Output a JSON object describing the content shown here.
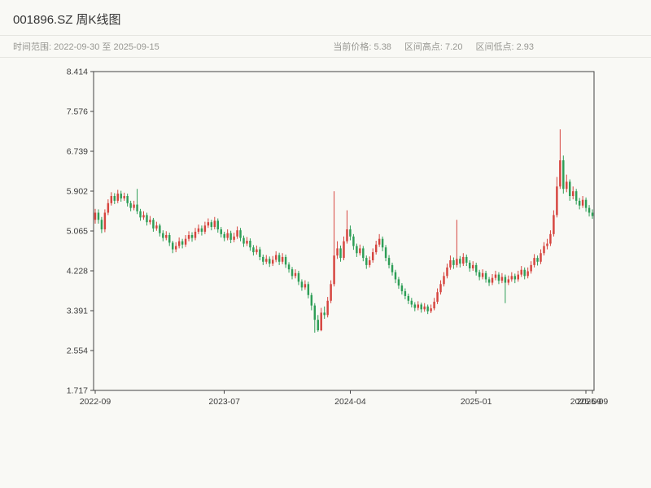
{
  "header": {
    "title": "001896.SZ 周K线图",
    "time_range": "时间范围: 2022-09-30 至 2025-09-15",
    "stats": {
      "current_price": "当前价格: 5.38",
      "range_high": "区间高点: 7.20",
      "range_low": "区间低点: 2.93"
    }
  },
  "chart_data": {
    "type": "candlestick",
    "symbol": "001896.SZ",
    "interval": "weekly",
    "start_date": "2022-09-30",
    "end_date": "2025-09-15",
    "current_price": 5.38,
    "range_high": 7.2,
    "range_low": 2.93,
    "y_min": 1.717,
    "y_max": 8.414,
    "y_tick_labels": [
      "8.414",
      "7.576",
      "6.739",
      "5.902",
      "5.065",
      "4.228",
      "3.391",
      "2.554",
      "1.717"
    ],
    "x_ticks": [
      {
        "i": 0,
        "label": "2022-09"
      },
      {
        "i": 40,
        "label": "2023-07"
      },
      {
        "i": 79,
        "label": "2024-04"
      },
      {
        "i": 118,
        "label": "2025-01"
      },
      {
        "i": 152,
        "label": "2025-09"
      },
      {
        "i": 154,
        "label": "2025-09"
      }
    ],
    "up_color": "#d6453f",
    "down_color": "#2e9e57",
    "axis_color": "#444444",
    "label_color": "#3c3c3c",
    "grid": false,
    "legend": false,
    "ohlc_columns": [
      "open",
      "high",
      "low",
      "close"
    ],
    "ohlc": [
      [
        5.3,
        5.53,
        5.22,
        5.45
      ],
      [
        5.45,
        5.52,
        5.22,
        5.3
      ],
      [
        5.3,
        5.36,
        5.02,
        5.1
      ],
      [
        5.1,
        5.52,
        5.04,
        5.45
      ],
      [
        5.45,
        5.73,
        5.4,
        5.65
      ],
      [
        5.65,
        5.88,
        5.6,
        5.8
      ],
      [
        5.8,
        5.86,
        5.63,
        5.7
      ],
      [
        5.7,
        5.93,
        5.65,
        5.85
      ],
      [
        5.85,
        5.91,
        5.68,
        5.75
      ],
      [
        5.75,
        5.87,
        5.7,
        5.8
      ],
      [
        5.8,
        5.85,
        5.58,
        5.65
      ],
      [
        5.65,
        5.7,
        5.48,
        5.55
      ],
      [
        5.55,
        5.7,
        5.5,
        5.62
      ],
      [
        5.62,
        5.95,
        5.42,
        5.48
      ],
      [
        5.48,
        5.53,
        5.28,
        5.35
      ],
      [
        5.35,
        5.48,
        5.3,
        5.4
      ],
      [
        5.4,
        5.45,
        5.18,
        5.25
      ],
      [
        5.25,
        5.38,
        5.2,
        5.3
      ],
      [
        5.3,
        5.34,
        5.05,
        5.12
      ],
      [
        5.12,
        5.26,
        5.07,
        5.18
      ],
      [
        5.18,
        5.22,
        4.95,
        5.02
      ],
      [
        5.02,
        5.08,
        4.85,
        4.92
      ],
      [
        4.92,
        5.06,
        4.87,
        4.98
      ],
      [
        4.98,
        5.03,
        4.75,
        4.82
      ],
      [
        4.82,
        4.86,
        4.6,
        4.68
      ],
      [
        4.68,
        4.83,
        4.62,
        4.75
      ],
      [
        4.75,
        4.93,
        4.7,
        4.85
      ],
      [
        4.85,
        4.9,
        4.7,
        4.78
      ],
      [
        4.78,
        4.98,
        4.73,
        4.9
      ],
      [
        4.9,
        5.06,
        4.85,
        4.98
      ],
      [
        4.98,
        5.04,
        4.84,
        4.92
      ],
      [
        4.92,
        5.13,
        4.87,
        5.05
      ],
      [
        5.05,
        5.2,
        5.0,
        5.12
      ],
      [
        5.12,
        5.18,
        4.97,
        5.05
      ],
      [
        5.05,
        5.26,
        5.0,
        5.18
      ],
      [
        5.18,
        5.33,
        5.13,
        5.25
      ],
      [
        5.25,
        5.3,
        5.08,
        5.15
      ],
      [
        5.15,
        5.36,
        5.1,
        5.28
      ],
      [
        5.28,
        5.33,
        5.03,
        5.1
      ],
      [
        5.1,
        5.15,
        4.93,
        5.0
      ],
      [
        5.0,
        5.05,
        4.85,
        4.92
      ],
      [
        4.92,
        5.1,
        4.87,
        5.02
      ],
      [
        5.02,
        5.07,
        4.81,
        4.88
      ],
      [
        4.88,
        5.03,
        4.83,
        4.95
      ],
      [
        4.95,
        5.16,
        4.9,
        5.08
      ],
      [
        5.08,
        5.13,
        4.85,
        4.92
      ],
      [
        4.92,
        4.97,
        4.73,
        4.8
      ],
      [
        4.8,
        4.94,
        4.75,
        4.86
      ],
      [
        4.86,
        4.91,
        4.65,
        4.72
      ],
      [
        4.72,
        4.77,
        4.55,
        4.62
      ],
      [
        4.62,
        4.76,
        4.57,
        4.68
      ],
      [
        4.68,
        4.73,
        4.45,
        4.52
      ],
      [
        4.52,
        4.57,
        4.35,
        4.42
      ],
      [
        4.42,
        4.56,
        4.37,
        4.48
      ],
      [
        4.48,
        4.53,
        4.31,
        4.38
      ],
      [
        4.38,
        4.54,
        4.33,
        4.46
      ],
      [
        4.46,
        4.64,
        4.41,
        4.56
      ],
      [
        4.56,
        4.61,
        4.35,
        4.42
      ],
      [
        4.42,
        4.6,
        4.37,
        4.52
      ],
      [
        4.52,
        4.57,
        4.29,
        4.36
      ],
      [
        4.36,
        4.41,
        4.19,
        4.26
      ],
      [
        4.26,
        4.31,
        4.05,
        4.12
      ],
      [
        4.12,
        4.26,
        4.07,
        4.18
      ],
      [
        4.18,
        4.23,
        3.93,
        4.0
      ],
      [
        4.0,
        4.05,
        3.81,
        3.88
      ],
      [
        3.88,
        4.03,
        3.83,
        3.95
      ],
      [
        3.95,
        4.0,
        3.65,
        3.72
      ],
      [
        3.72,
        3.77,
        3.4,
        3.5
      ],
      [
        3.5,
        3.55,
        2.93,
        3.2
      ],
      [
        3.2,
        3.3,
        2.95,
        2.98
      ],
      [
        2.98,
        3.45,
        2.96,
        3.35
      ],
      [
        3.35,
        3.48,
        3.22,
        3.3
      ],
      [
        3.3,
        3.68,
        3.25,
        3.6
      ],
      [
        3.6,
        4.03,
        3.55,
        3.95
      ],
      [
        3.95,
        5.9,
        3.9,
        4.55
      ],
      [
        4.55,
        4.85,
        4.48,
        4.7
      ],
      [
        4.7,
        4.76,
        4.42,
        4.5
      ],
      [
        4.5,
        4.95,
        4.45,
        4.85
      ],
      [
        4.85,
        5.5,
        4.8,
        5.1
      ],
      [
        5.1,
        5.18,
        4.87,
        4.95
      ],
      [
        4.95,
        5.0,
        4.67,
        4.75
      ],
      [
        4.75,
        4.8,
        4.52,
        4.6
      ],
      [
        4.6,
        4.78,
        4.55,
        4.7
      ],
      [
        4.7,
        4.75,
        4.43,
        4.5
      ],
      [
        4.5,
        4.55,
        4.27,
        4.35
      ],
      [
        4.35,
        4.53,
        4.3,
        4.45
      ],
      [
        4.45,
        4.7,
        4.4,
        4.62
      ],
      [
        4.62,
        4.86,
        4.57,
        4.78
      ],
      [
        4.78,
        5.0,
        4.73,
        4.9
      ],
      [
        4.9,
        4.95,
        4.64,
        4.72
      ],
      [
        4.72,
        4.77,
        4.43,
        4.5
      ],
      [
        4.5,
        4.56,
        4.28,
        4.35
      ],
      [
        4.35,
        4.4,
        4.13,
        4.2
      ],
      [
        4.2,
        4.25,
        3.97,
        4.05
      ],
      [
        4.05,
        4.1,
        3.85,
        3.92
      ],
      [
        3.92,
        3.97,
        3.73,
        3.8
      ],
      [
        3.8,
        3.86,
        3.63,
        3.7
      ],
      [
        3.7,
        3.75,
        3.53,
        3.6
      ],
      [
        3.6,
        3.66,
        3.46,
        3.52
      ],
      [
        3.52,
        3.57,
        3.38,
        3.45
      ],
      [
        3.45,
        3.59,
        3.4,
        3.52
      ],
      [
        3.52,
        3.56,
        3.35,
        3.42
      ],
      [
        3.42,
        3.55,
        3.37,
        3.48
      ],
      [
        3.48,
        3.52,
        3.32,
        3.38
      ],
      [
        3.38,
        3.52,
        3.34,
        3.44
      ],
      [
        3.44,
        3.66,
        3.4,
        3.58
      ],
      [
        3.58,
        3.86,
        3.53,
        3.78
      ],
      [
        3.78,
        4.03,
        3.73,
        3.95
      ],
      [
        3.95,
        4.2,
        3.9,
        4.12
      ],
      [
        4.12,
        4.38,
        4.07,
        4.3
      ],
      [
        4.3,
        4.55,
        4.25,
        4.45
      ],
      [
        4.45,
        4.51,
        4.27,
        4.35
      ],
      [
        4.35,
        5.3,
        4.3,
        4.48
      ],
      [
        4.48,
        4.54,
        4.3,
        4.38
      ],
      [
        4.38,
        4.6,
        4.33,
        4.52
      ],
      [
        4.52,
        4.57,
        4.33,
        4.4
      ],
      [
        4.4,
        4.45,
        4.21,
        4.28
      ],
      [
        4.28,
        4.43,
        4.23,
        4.35
      ],
      [
        4.35,
        4.4,
        4.13,
        4.2
      ],
      [
        4.2,
        4.25,
        4.03,
        4.1
      ],
      [
        4.1,
        4.26,
        4.05,
        4.18
      ],
      [
        4.18,
        4.23,
        3.98,
        4.05
      ],
      [
        4.05,
        4.1,
        3.91,
        3.98
      ],
      [
        3.98,
        4.16,
        3.93,
        4.08
      ],
      [
        4.08,
        4.23,
        4.03,
        4.15
      ],
      [
        4.15,
        4.2,
        3.95,
        4.02
      ],
      [
        4.02,
        4.18,
        3.97,
        4.1
      ],
      [
        4.1,
        4.15,
        3.55,
        3.98
      ],
      [
        3.98,
        4.13,
        3.93,
        4.05
      ],
      [
        4.05,
        4.2,
        4.0,
        4.12
      ],
      [
        4.12,
        4.17,
        3.97,
        4.05
      ],
      [
        4.05,
        4.23,
        4.0,
        4.15
      ],
      [
        4.15,
        4.33,
        4.1,
        4.25
      ],
      [
        4.25,
        4.3,
        4.05,
        4.12
      ],
      [
        4.12,
        4.3,
        4.07,
        4.22
      ],
      [
        4.22,
        4.43,
        4.17,
        4.35
      ],
      [
        4.35,
        4.58,
        4.3,
        4.5
      ],
      [
        4.5,
        4.55,
        4.34,
        4.42
      ],
      [
        4.42,
        4.68,
        4.37,
        4.6
      ],
      [
        4.6,
        4.83,
        4.55,
        4.75
      ],
      [
        4.75,
        4.9,
        4.68,
        4.8
      ],
      [
        4.8,
        5.08,
        4.75,
        5.0
      ],
      [
        5.0,
        5.5,
        4.95,
        5.4
      ],
      [
        5.4,
        6.2,
        5.35,
        6.0
      ],
      [
        6.0,
        7.2,
        5.95,
        6.55
      ],
      [
        6.55,
        6.65,
        5.85,
        5.95
      ],
      [
        5.95,
        6.25,
        5.88,
        6.1
      ],
      [
        6.1,
        6.15,
        5.7,
        5.8
      ],
      [
        5.8,
        6.0,
        5.73,
        5.9
      ],
      [
        5.9,
        5.95,
        5.62,
        5.7
      ],
      [
        5.7,
        5.76,
        5.52,
        5.6
      ],
      [
        5.6,
        5.8,
        5.55,
        5.72
      ],
      [
        5.72,
        5.77,
        5.47,
        5.55
      ],
      [
        5.55,
        5.61,
        5.37,
        5.45
      ],
      [
        5.45,
        5.52,
        5.32,
        5.38
      ]
    ]
  }
}
